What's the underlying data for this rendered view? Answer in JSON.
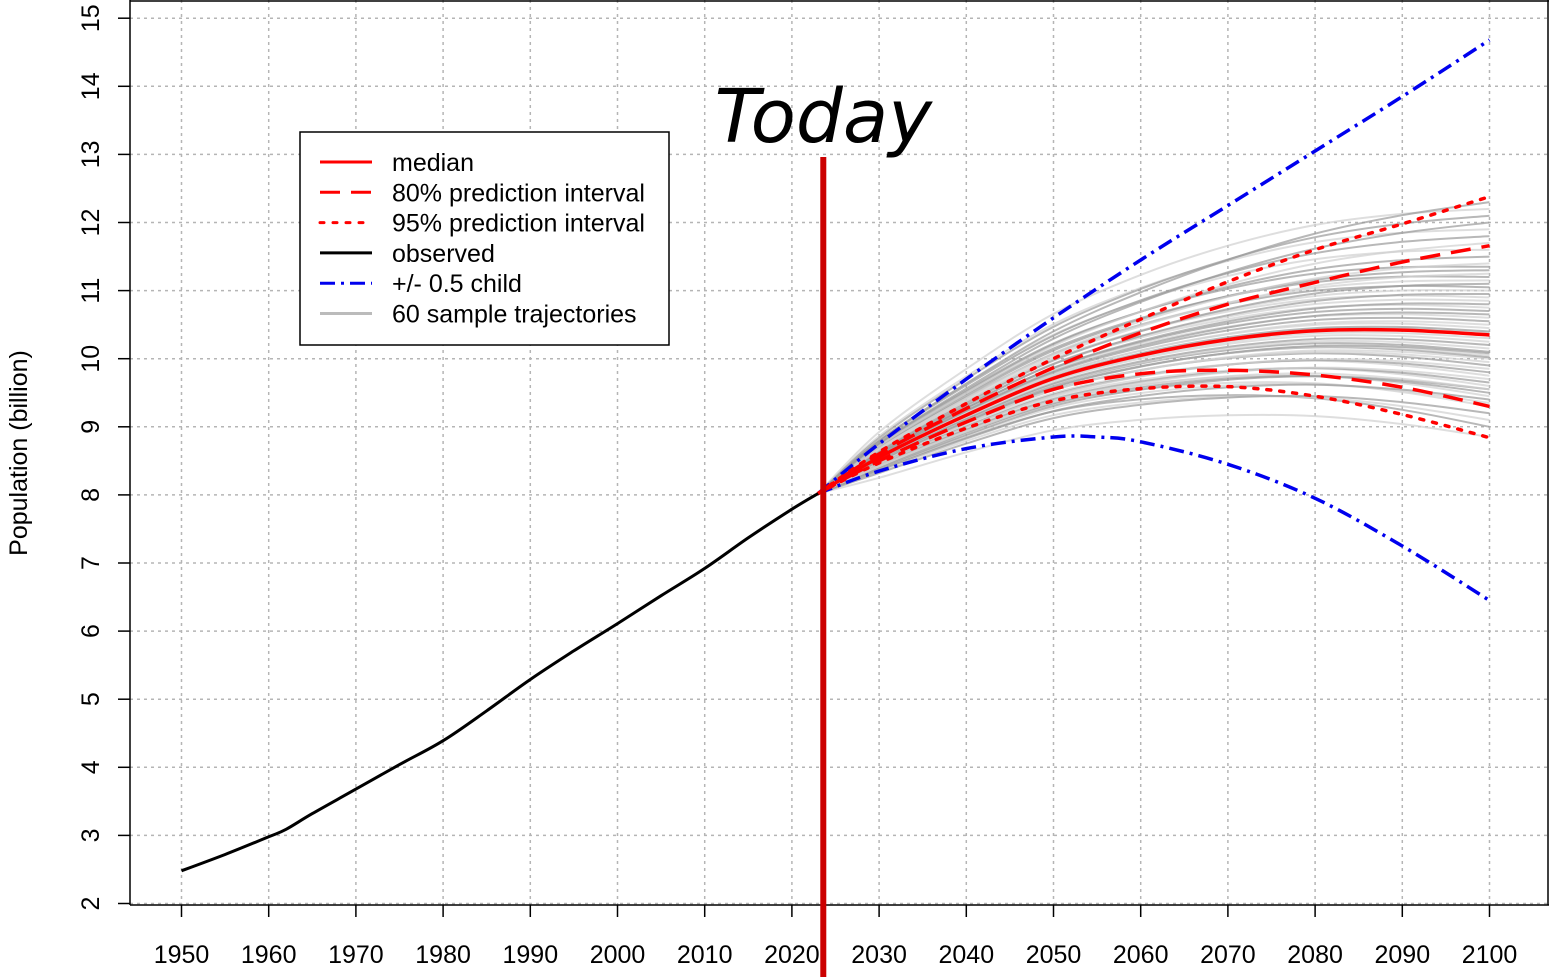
{
  "chart_data": {
    "type": "line",
    "title": "",
    "xlabel": "",
    "ylabel": "Population (billion)",
    "xlim": [
      1943,
      2106
    ],
    "ylim": [
      2,
      15
    ],
    "x_ticks": [
      1950,
      1960,
      1970,
      1980,
      1990,
      2000,
      2010,
      2020,
      2030,
      2040,
      2050,
      2060,
      2070,
      2080,
      2090,
      2100
    ],
    "y_ticks": [
      2,
      3,
      4,
      5,
      6,
      7,
      8,
      9,
      10,
      11,
      12,
      13,
      14,
      15
    ],
    "grid": true,
    "legend_position": "top-left",
    "annotation": {
      "text": "Today",
      "x": 2023.6,
      "color": "#cc0000"
    },
    "series": [
      {
        "name": "observed",
        "color": "#000000",
        "dash": "solid",
        "x": [
          1950,
          1955,
          1960,
          1962,
          1965,
          1970,
          1975,
          1980,
          1985,
          1990,
          1995,
          2000,
          2005,
          2010,
          2015,
          2020,
          2023
        ],
        "y": [
          2.48,
          2.72,
          2.98,
          3.09,
          3.32,
          3.68,
          4.04,
          4.39,
          4.83,
          5.29,
          5.71,
          6.11,
          6.52,
          6.92,
          7.37,
          7.79,
          8.02
        ]
      },
      {
        "name": "median",
        "color": "#ff0000",
        "dash": "solid",
        "x": [
          2023,
          2030,
          2040,
          2050,
          2060,
          2070,
          2080,
          2090,
          2100
        ],
        "y": [
          8.02,
          8.55,
          9.17,
          9.71,
          10.05,
          10.28,
          10.41,
          10.42,
          10.35
        ]
      },
      {
        "name": "80% prediction interval",
        "color": "#ff0000",
        "dash": "long",
        "x": [
          2023,
          2030,
          2040,
          2050,
          2060,
          2070,
          2080,
          2090,
          2100
        ],
        "y": [
          8.02,
          8.6,
          9.27,
          9.87,
          10.38,
          10.8,
          11.12,
          11.42,
          11.66
        ]
      },
      {
        "name": "",
        "color": "#ff0000",
        "dash": "long",
        "x": [
          2023,
          2030,
          2040,
          2050,
          2060,
          2070,
          2080,
          2090,
          2100
        ],
        "y": [
          8.02,
          8.5,
          9.07,
          9.55,
          9.78,
          9.83,
          9.76,
          9.58,
          9.3
        ]
      },
      {
        "name": "95% prediction interval",
        "color": "#ff0000",
        "dash": "dot",
        "x": [
          2023,
          2030,
          2040,
          2050,
          2060,
          2070,
          2080,
          2090,
          2100
        ],
        "y": [
          8.02,
          8.63,
          9.34,
          10.0,
          10.58,
          11.13,
          11.6,
          11.98,
          12.38
        ]
      },
      {
        "name": "",
        "color": "#ff0000",
        "dash": "dot",
        "x": [
          2023,
          2030,
          2040,
          2050,
          2060,
          2070,
          2080,
          2090,
          2100
        ],
        "y": [
          8.02,
          8.47,
          8.98,
          9.38,
          9.56,
          9.59,
          9.45,
          9.18,
          8.84
        ]
      },
      {
        "name": "+/- 0.5 child",
        "color": "#0000ee",
        "dash": "dashdot",
        "x": [
          2023,
          2030,
          2040,
          2050,
          2060,
          2070,
          2080,
          2090,
          2100
        ],
        "y": [
          8.02,
          8.75,
          9.7,
          10.6,
          11.45,
          12.25,
          13.05,
          13.85,
          14.68
        ]
      },
      {
        "name": "",
        "color": "#0000ee",
        "dash": "dashdot",
        "x": [
          2023,
          2030,
          2040,
          2050,
          2055,
          2060,
          2070,
          2080,
          2090,
          2100
        ],
        "y": [
          8.02,
          8.35,
          8.68,
          8.85,
          8.85,
          8.78,
          8.45,
          7.95,
          7.25,
          6.45
        ]
      }
    ],
    "sample_trajectories": {
      "name": "60 sample trajectories",
      "color": "#bbbbbb",
      "count": 60,
      "x": [
        2023,
        2030,
        2040,
        2050,
        2060,
        2070,
        2080,
        2090,
        2100
      ],
      "end_values": [
        8.85,
        9.0,
        9.1,
        9.2,
        9.3,
        9.35,
        9.4,
        9.45,
        9.5,
        9.55,
        9.6,
        9.65,
        9.7,
        9.75,
        9.8,
        9.85,
        9.9,
        9.95,
        10.0,
        10.02,
        10.05,
        10.08,
        10.1,
        10.15,
        10.2,
        10.25,
        10.3,
        10.35,
        10.38,
        10.4,
        10.45,
        10.5,
        10.55,
        10.6,
        10.65,
        10.7,
        10.75,
        10.8,
        10.85,
        10.9,
        10.95,
        11.0,
        11.05,
        11.1,
        11.15,
        11.2,
        11.25,
        11.3,
        11.35,
        11.4,
        11.5,
        11.6,
        11.7,
        11.8,
        11.9,
        12.0,
        12.1,
        12.2,
        12.3,
        9.55
      ]
    }
  },
  "legend": {
    "items": [
      {
        "label": "median",
        "color": "#ff0000",
        "dash": "solid"
      },
      {
        "label": "80% prediction interval",
        "color": "#ff0000",
        "dash": "long"
      },
      {
        "label": "95% prediction interval",
        "color": "#ff0000",
        "dash": "dot"
      },
      {
        "label": "observed",
        "color": "#000000",
        "dash": "solid"
      },
      {
        "label": "+/- 0.5 child",
        "color": "#0000ee",
        "dash": "dashdot"
      },
      {
        "label": "60 sample trajectories",
        "color": "#bbbbbb",
        "dash": "solid"
      }
    ]
  }
}
